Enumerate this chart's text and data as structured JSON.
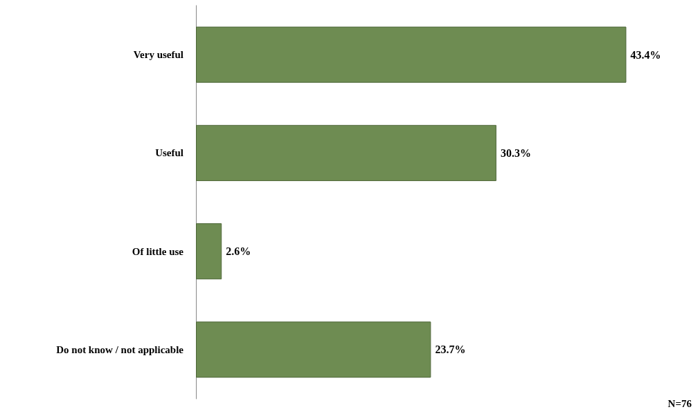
{
  "chart_data": {
    "type": "bar",
    "orientation": "horizontal",
    "categories": [
      "Very useful",
      "Useful",
      "Of little use",
      "Do not know / not applicable"
    ],
    "values": [
      43.4,
      30.3,
      2.6,
      23.7
    ],
    "value_labels": [
      "43.4%",
      "30.3%",
      "2.6%",
      "23.7%"
    ],
    "color": "#6e8c52",
    "annotations": [
      "N=76"
    ]
  }
}
